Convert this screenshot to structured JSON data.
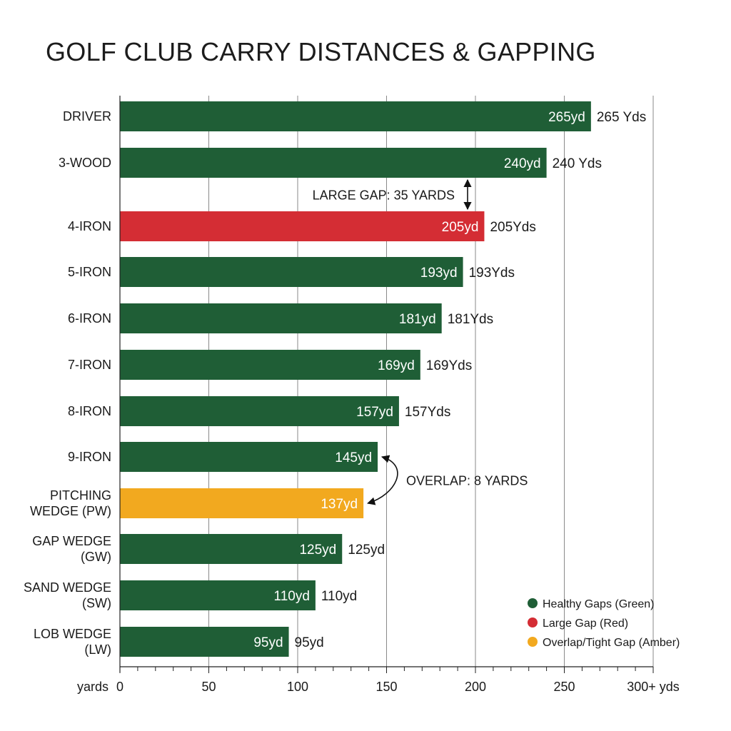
{
  "colors": {
    "healthy": "#1f5e36",
    "large_gap": "#d42d34",
    "overlap": "#f2a91f",
    "grid": "#8a8a8a",
    "axis": "#222222"
  },
  "chart_data": {
    "type": "bar",
    "orientation": "horizontal",
    "title": "GOLF CLUB CARRY DISTANCES & GAPPING",
    "xlabel": "yards",
    "xlim": [
      0,
      300
    ],
    "x_ticks": [
      {
        "value": 0,
        "label": "0"
      },
      {
        "value": 50,
        "label": "50"
      },
      {
        "value": 100,
        "label": "100"
      },
      {
        "value": 150,
        "label": "150"
      },
      {
        "value": 200,
        "label": "200"
      },
      {
        "value": 250,
        "label": "250"
      },
      {
        "value": 300,
        "label": "300+ yds"
      }
    ],
    "minor_tick_step": 10,
    "grid": true,
    "legend_position": "bottom-right",
    "bars": [
      {
        "club": [
          "DRIVER"
        ],
        "value": 265,
        "inner_label": "265yd",
        "outer_label": "265 Yds",
        "category": "healthy"
      },
      {
        "club": [
          "3-WOOD"
        ],
        "value": 240,
        "inner_label": "240yd",
        "outer_label": "240 Yds",
        "category": "healthy"
      },
      {
        "club": [
          "4-IRON"
        ],
        "value": 205,
        "inner_label": "205yd",
        "outer_label": "205Yds",
        "category": "large_gap"
      },
      {
        "club": [
          "5-IRON"
        ],
        "value": 193,
        "inner_label": "193yd",
        "outer_label": "193Yds",
        "category": "healthy"
      },
      {
        "club": [
          "6-IRON"
        ],
        "value": 181,
        "inner_label": "181yd",
        "outer_label": "181Yds",
        "category": "healthy"
      },
      {
        "club": [
          "7-IRON"
        ],
        "value": 169,
        "inner_label": "169yd",
        "outer_label": "169Yds",
        "category": "healthy"
      },
      {
        "club": [
          "8-IRON"
        ],
        "value": 157,
        "inner_label": "157yd",
        "outer_label": "157Yds",
        "category": "healthy"
      },
      {
        "club": [
          "9-IRON"
        ],
        "value": 145,
        "inner_label": "145yd",
        "outer_label": "",
        "category": "healthy"
      },
      {
        "club": [
          "PITCHING",
          "WEDGE (PW)"
        ],
        "value": 137,
        "inner_label": "137yd",
        "outer_label": "",
        "category": "overlap"
      },
      {
        "club": [
          "GAP WEDGE",
          "(GW)"
        ],
        "value": 125,
        "inner_label": "125yd",
        "outer_label": "125yd",
        "category": "healthy"
      },
      {
        "club": [
          "SAND WEDGE",
          "(SW)"
        ],
        "value": 110,
        "inner_label": "110yd",
        "outer_label": "110yd",
        "category": "healthy"
      },
      {
        "club": [
          "LOB WEDGE",
          "(LW)"
        ],
        "value": 95,
        "inner_label": "95yd",
        "outer_label": "95yd",
        "category": "healthy"
      }
    ],
    "annotations": [
      {
        "type": "gap",
        "text": "LARGE GAP: 35 YARDS",
        "between": [
          1,
          2
        ]
      },
      {
        "type": "overlap",
        "text": "OVERLAP: 8 YARDS",
        "between": [
          7,
          8
        ]
      }
    ],
    "legend": [
      {
        "label": "Healthy Gaps (Green)",
        "category": "healthy"
      },
      {
        "label": "Large Gap (Red)",
        "category": "large_gap"
      },
      {
        "label": "Overlap/Tight Gap (Amber)",
        "category": "overlap"
      }
    ]
  }
}
